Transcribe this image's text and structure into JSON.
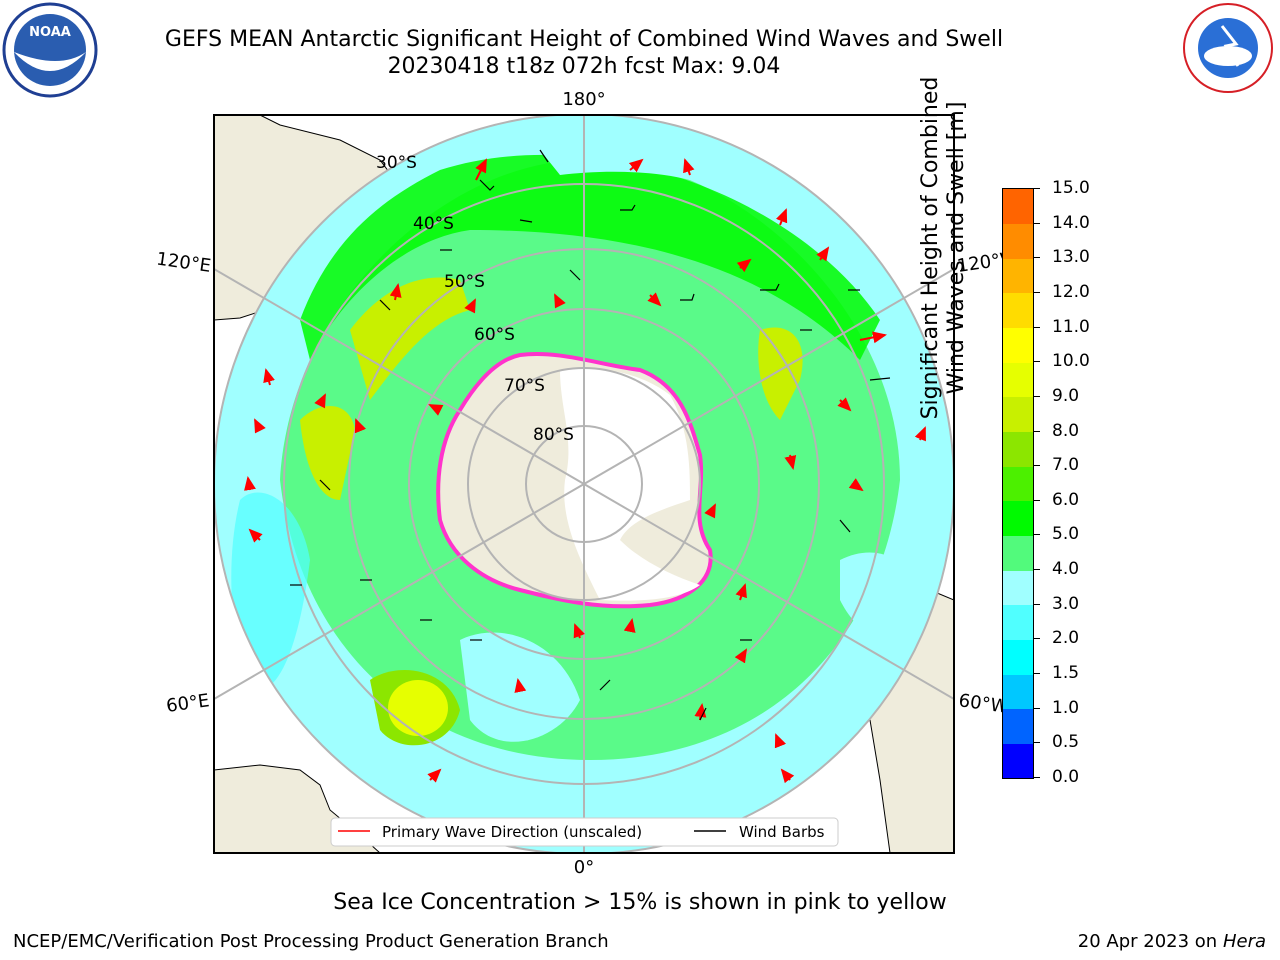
{
  "title_line1": "GEFS MEAN Antarctic Significant Height of Combined Wind Waves and Swell",
  "title_line2": "20230418 t18z 072h fcst   Max: 9.04",
  "map": {
    "lon_labels": {
      "top": "180°",
      "bottom": "0°",
      "left_upper": "120°E",
      "left_lower": "60°E",
      "right_upper": "120°W",
      "right_lower": "60°W"
    },
    "lat_labels": [
      "30°S",
      "40°S",
      "50°S",
      "60°S",
      "70°S",
      "80°S"
    ],
    "legend": {
      "wave_label": "Primary Wave Direction (unscaled)",
      "barb_label": "Wind Barbs"
    },
    "colors": {
      "land": "#efecdc",
      "ice_shelf": "#ffffff",
      "ocean_low": "#a0ffff",
      "ocean_mid": "#52fa7c",
      "wave_arrow": "#ff0000",
      "sea_ice_edge": "#ff33cc"
    }
  },
  "colorbar": {
    "label_line1": "Significant Height of Combined",
    "label_line2": "Wind Waves and Swell [m]",
    "ticks": [
      "15.0",
      "14.0",
      "13.0",
      "12.0",
      "11.0",
      "10.0",
      "9.0",
      "8.0",
      "7.0",
      "6.0",
      "5.0",
      "4.0",
      "3.0",
      "2.0",
      "1.5",
      "1.0",
      "0.5",
      "0.0"
    ],
    "colors": [
      "#0000ff",
      "#0064ff",
      "#00c8ff",
      "#00ffff",
      "#50ffff",
      "#a0ffff",
      "#52fa7c",
      "#00fa00",
      "#4cf000",
      "#8ce600",
      "#c8f000",
      "#e6ff00",
      "#ffff00",
      "#ffdc00",
      "#ffb400",
      "#ff8c00",
      "#ff6400",
      "#ff3c00",
      "#ff0000"
    ]
  },
  "ice_note": "Sea Ice Concentration > 15% is shown in pink to yellow",
  "footer_left": "NCEP/EMC/Verification Post Processing Product Generation Branch",
  "footer_right_date": "20 Apr 2023 on ",
  "footer_right_host": "Hera"
}
